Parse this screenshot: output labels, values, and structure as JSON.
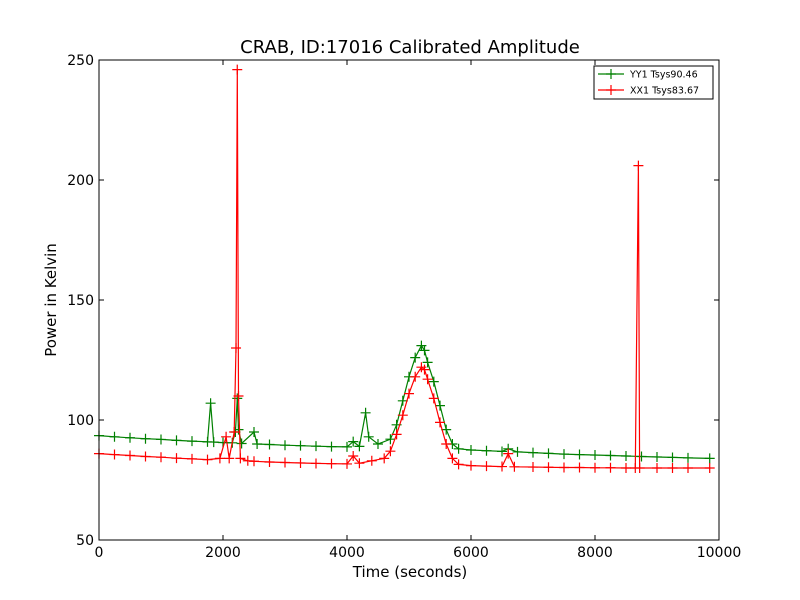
{
  "chart_data": {
    "type": "line",
    "title": "CRAB, ID:17016 Calibrated Amplitude",
    "xlabel": "Time (seconds)",
    "ylabel": "Power in Kelvin",
    "xlim": [
      0,
      10000
    ],
    "ylim": [
      50,
      250
    ],
    "xticks": [
      "0",
      "2000",
      "4000",
      "6000",
      "8000",
      "10000"
    ],
    "yticks": [
      "50",
      "100",
      "150",
      "200",
      "250"
    ],
    "grid": false,
    "legend_position": "top-right",
    "marker": "+",
    "series": [
      {
        "name": "YY1 Tsys90.46",
        "color": "#008000",
        "points": [
          [
            0,
            93.5
          ],
          [
            250,
            93.0
          ],
          [
            500,
            92.6
          ],
          [
            750,
            92.2
          ],
          [
            1000,
            91.9
          ],
          [
            1250,
            91.5
          ],
          [
            1500,
            91.2
          ],
          [
            1750,
            90.9
          ],
          [
            1800,
            107.0
          ],
          [
            1850,
            90.8
          ],
          [
            2000,
            90.6
          ],
          [
            2150,
            90.5
          ],
          [
            2200,
            95.0
          ],
          [
            2230,
            109.0
          ],
          [
            2250,
            96.0
          ],
          [
            2300,
            90.2
          ],
          [
            2500,
            95.0
          ],
          [
            2550,
            90.0
          ],
          [
            2750,
            89.8
          ],
          [
            3000,
            89.5
          ],
          [
            3250,
            89.3
          ],
          [
            3500,
            89.1
          ],
          [
            3750,
            88.9
          ],
          [
            4000,
            88.8
          ],
          [
            4100,
            91.0
          ],
          [
            4200,
            89.0
          ],
          [
            4300,
            103.0
          ],
          [
            4350,
            93.0
          ],
          [
            4500,
            90.0
          ],
          [
            4700,
            92.0
          ],
          [
            4800,
            98.0
          ],
          [
            4900,
            108.0
          ],
          [
            5000,
            118.0
          ],
          [
            5100,
            126.0
          ],
          [
            5200,
            131.0
          ],
          [
            5250,
            129.0
          ],
          [
            5300,
            124.0
          ],
          [
            5400,
            116.0
          ],
          [
            5500,
            106.0
          ],
          [
            5600,
            96.0
          ],
          [
            5700,
            90.0
          ],
          [
            5800,
            88.0
          ],
          [
            6000,
            87.5
          ],
          [
            6250,
            87.2
          ],
          [
            6500,
            86.9
          ],
          [
            6600,
            88.0
          ],
          [
            6750,
            86.7
          ],
          [
            7000,
            86.4
          ],
          [
            7250,
            86.1
          ],
          [
            7500,
            85.8
          ],
          [
            7750,
            85.6
          ],
          [
            8000,
            85.4
          ],
          [
            8250,
            85.2
          ],
          [
            8500,
            85.0
          ],
          [
            8750,
            84.8
          ],
          [
            9000,
            84.6
          ],
          [
            9250,
            84.4
          ],
          [
            9500,
            84.2
          ],
          [
            9850,
            84.0
          ]
        ]
      },
      {
        "name": "XX1 Tsys83.67",
        "color": "#ff0000",
        "points": [
          [
            0,
            86.0
          ],
          [
            250,
            85.6
          ],
          [
            500,
            85.2
          ],
          [
            750,
            84.8
          ],
          [
            1000,
            84.5
          ],
          [
            1250,
            84.1
          ],
          [
            1500,
            83.8
          ],
          [
            1750,
            83.5
          ],
          [
            1950,
            84.0
          ],
          [
            2050,
            93.0
          ],
          [
            2100,
            84.0
          ],
          [
            2180,
            95.0
          ],
          [
            2210,
            130.0
          ],
          [
            2230,
            246.0
          ],
          [
            2250,
            110.0
          ],
          [
            2280,
            84.0
          ],
          [
            2400,
            83.0
          ],
          [
            2500,
            82.8
          ],
          [
            2750,
            82.5
          ],
          [
            3000,
            82.3
          ],
          [
            3250,
            82.1
          ],
          [
            3500,
            81.9
          ],
          [
            3750,
            81.8
          ],
          [
            4000,
            81.7
          ],
          [
            4100,
            85.0
          ],
          [
            4200,
            82.0
          ],
          [
            4400,
            83.0
          ],
          [
            4600,
            84.0
          ],
          [
            4700,
            87.0
          ],
          [
            4800,
            94.0
          ],
          [
            4900,
            102.0
          ],
          [
            5000,
            111.0
          ],
          [
            5100,
            118.0
          ],
          [
            5200,
            122.0
          ],
          [
            5250,
            121.0
          ],
          [
            5300,
            117.0
          ],
          [
            5400,
            109.0
          ],
          [
            5500,
            99.0
          ],
          [
            5600,
            90.0
          ],
          [
            5700,
            84.0
          ],
          [
            5800,
            81.5
          ],
          [
            6000,
            81.0
          ],
          [
            6250,
            80.8
          ],
          [
            6500,
            80.6
          ],
          [
            6600,
            86.0
          ],
          [
            6700,
            80.5
          ],
          [
            7000,
            80.4
          ],
          [
            7250,
            80.3
          ],
          [
            7500,
            80.2
          ],
          [
            7750,
            80.2
          ],
          [
            8000,
            80.1
          ],
          [
            8250,
            80.1
          ],
          [
            8500,
            80.0
          ],
          [
            8650,
            80.0
          ],
          [
            8700,
            206.0
          ],
          [
            8720,
            80.0
          ],
          [
            9000,
            80.0
          ],
          [
            9250,
            80.0
          ],
          [
            9500,
            80.0
          ],
          [
            9850,
            80.0
          ]
        ]
      }
    ]
  }
}
